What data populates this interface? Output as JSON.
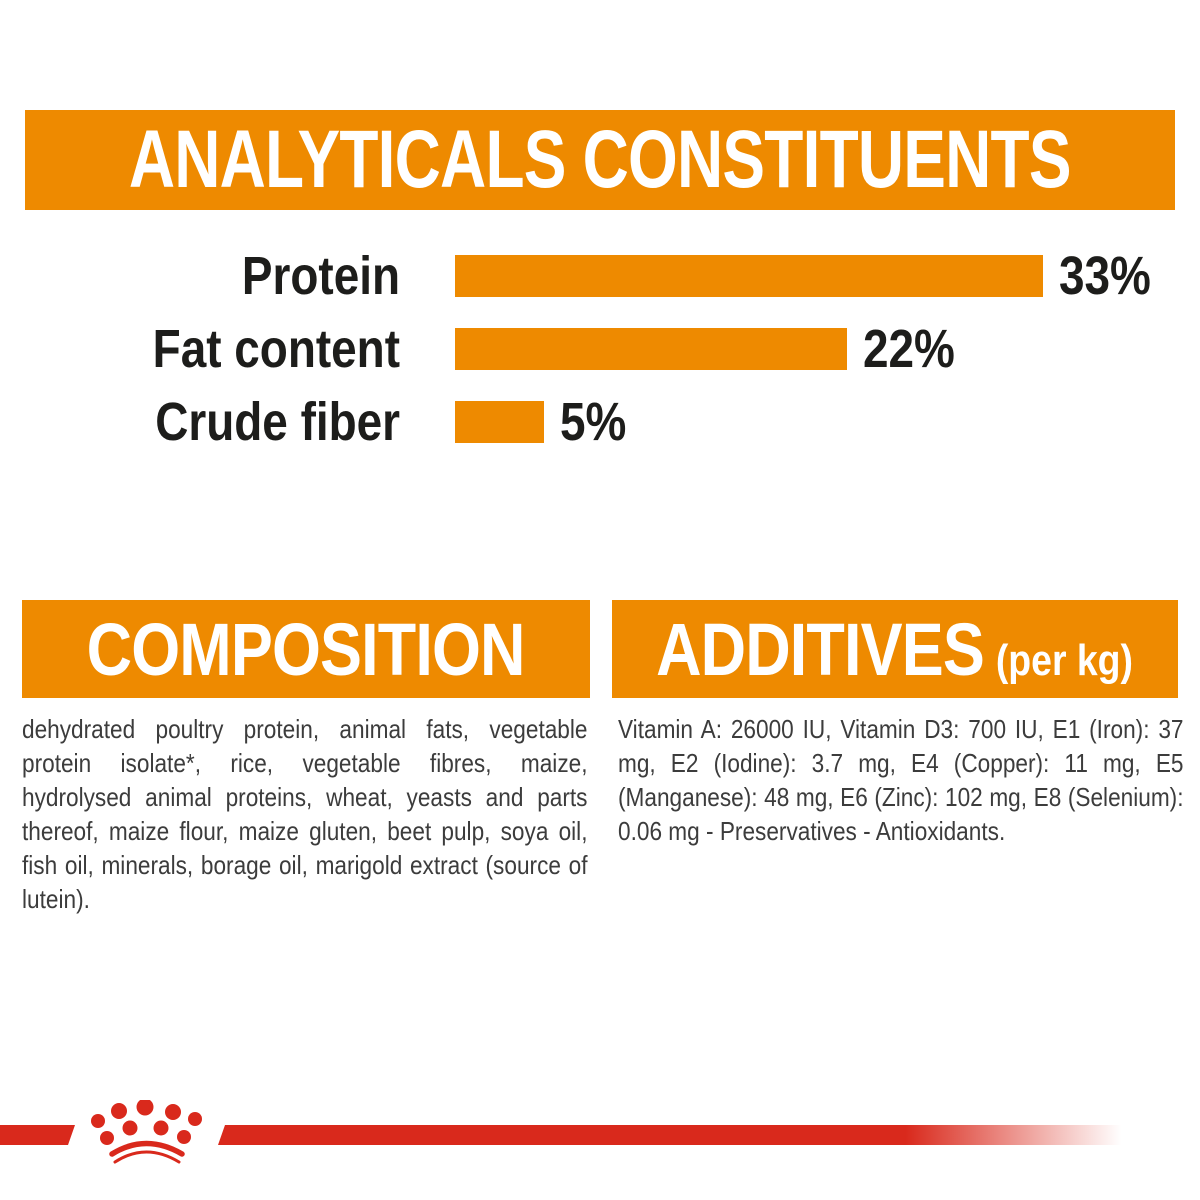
{
  "colors": {
    "orange": "#EE8A00",
    "red": "#D9291C",
    "heading_text": "#FFFFFF",
    "label_text": "#1D1D1B",
    "body_text": "#3C3C3C",
    "background": "#FFFFFF"
  },
  "header": {
    "title": "ANALYTICALS CONSTITUENTS"
  },
  "chart_data": {
    "type": "bar",
    "orientation": "horizontal",
    "title": "ANALYTICALS CONSTITUENTS",
    "categories": [
      "Protein",
      "Fat content",
      "Crude fiber"
    ],
    "values": [
      33,
      22,
      5
    ],
    "value_labels": [
      "33%",
      "22%",
      "5%"
    ],
    "unit": "percent",
    "xlim": [
      0,
      33
    ],
    "bar_color": "#EE8A00",
    "grid": false,
    "legend": false
  },
  "composition": {
    "title": "COMPOSITION",
    "text": "dehydrated poultry protein, animal fats, vegetable protein isolate*, rice, vegetable fibres, maize, hydrolysed animal proteins, wheat, yeasts and parts thereof, maize flour, maize gluten, beet pulp, soya oil, fish oil, minerals, borage oil, marigold extract (source of lutein)."
  },
  "additives": {
    "title": "ADDITIVES",
    "unit_label": "(per kg)",
    "text": "Vitamin A: 26000 IU, Vitamin D3: 700 IU, E1 (Iron): 37 mg, E2 (Iodine): 3.7 mg, E4 (Copper): 11 mg, E5 (Manganese): 48 mg, E6 (Zinc): 102 mg, E8 (Selenium): 0.06 mg - Preservatives - Antioxidants."
  },
  "footer": {
    "logo_icon": "royal-canin-crown-logo"
  }
}
